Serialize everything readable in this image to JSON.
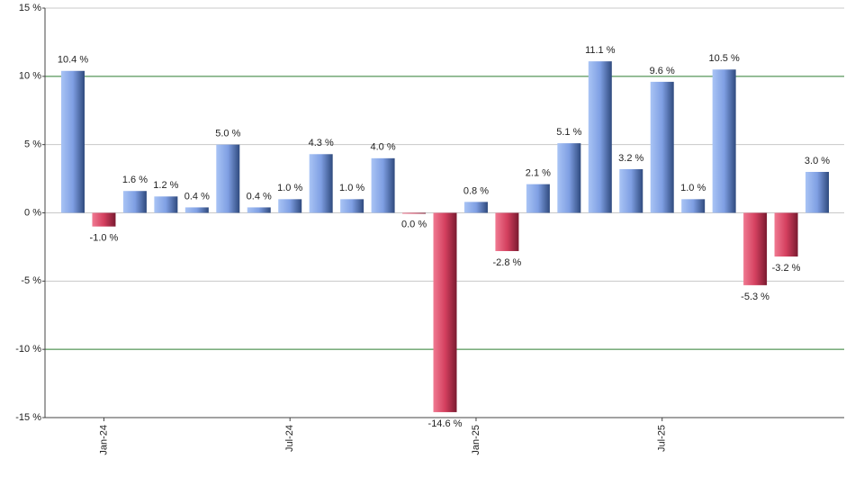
{
  "chart_data": {
    "type": "bar",
    "categories": [
      null,
      "Jan-24",
      null,
      null,
      null,
      null,
      null,
      "Jul-24",
      null,
      null,
      null,
      null,
      null,
      "Jan-25",
      null,
      null,
      null,
      null,
      null,
      "Jul-25",
      null,
      null,
      null,
      null,
      null
    ],
    "values": [
      10.4,
      -1.0,
      1.6,
      1.2,
      0.4,
      5.0,
      0.4,
      1.0,
      4.3,
      1.0,
      4.0,
      0.0,
      -14.6,
      0.8,
      -2.8,
      2.1,
      5.1,
      11.1,
      3.2,
      9.6,
      1.0,
      10.5,
      -5.3,
      -3.2,
      3.0
    ],
    "value_labels": [
      "10.4 %",
      "-1.0 %",
      "1.6 %",
      "1.2 %",
      "0.4 %",
      "5.0 %",
      "0.4 %",
      "1.0 %",
      "4.3 %",
      "1.0 %",
      "4.0 %",
      "0.0 %",
      "-14.6 %",
      "0.8 %",
      "-2.8 %",
      "2.1 %",
      "5.1 %",
      "11.1 %",
      "3.2 %",
      "9.6 %",
      "1.0 %",
      "10.5 %",
      "-5.3 %",
      "-3.2 %",
      "3.0 %"
    ],
    "positive_color": "#7f9fe3",
    "negative_color": "#d4405f",
    "ylim": [
      -15,
      15
    ],
    "yticks": [
      {
        "value": -15,
        "label": "-15 %"
      },
      {
        "value": -10,
        "label": "-10 %"
      },
      {
        "value": -5,
        "label": "-5 %"
      },
      {
        "value": 0,
        "label": "0 %"
      },
      {
        "value": 5,
        "label": "5 %"
      },
      {
        "value": 10,
        "label": "10 %"
      },
      {
        "value": 15,
        "label": "15 %"
      }
    ],
    "grid": true,
    "grid_colors": [
      "#c8c8c8",
      "#2e7d32",
      "#c8c8c8",
      "#c8c8c8",
      "#c8c8c8",
      "#2e7d32",
      "#c8c8c8"
    ]
  }
}
